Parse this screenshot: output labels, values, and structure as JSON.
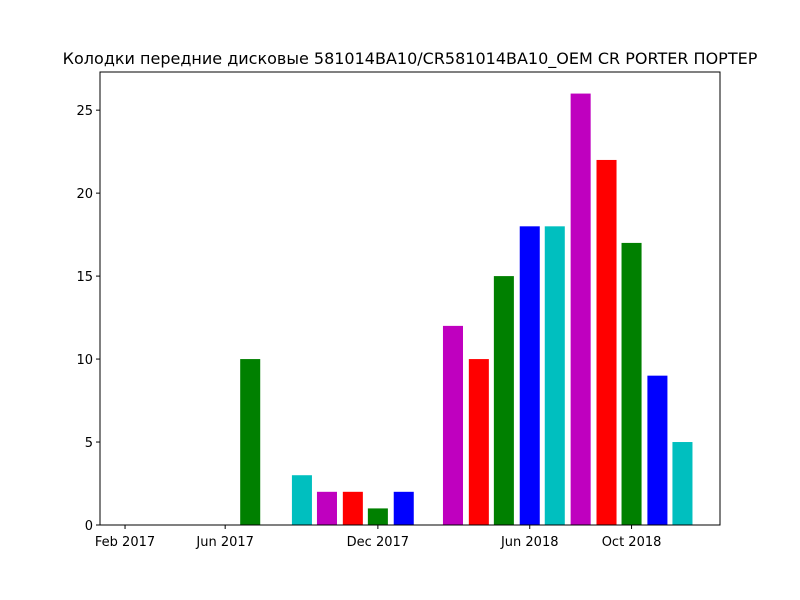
{
  "chart_data": {
    "type": "bar",
    "title": "Колодки передние дисковые 581014BA10/CR581014BA10_OEM CR PORTER ПОРТЕР",
    "xlabel": "",
    "ylabel": "",
    "x_type": "date",
    "xlim": [
      "2017-01-02",
      "2019-01-15"
    ],
    "ylim": [
      0,
      27.3
    ],
    "x_ticks": [
      {
        "date": "2017-02-01",
        "label": "Feb 2017"
      },
      {
        "date": "2017-06-01",
        "label": "Jun 2017"
      },
      {
        "date": "2017-12-01",
        "label": "Dec 2017"
      },
      {
        "date": "2018-06-01",
        "label": "Jun 2018"
      },
      {
        "date": "2018-10-01",
        "label": "Oct 2018"
      }
    ],
    "y_ticks": [
      0,
      5,
      10,
      15,
      20,
      25
    ],
    "bar_width_days": 24,
    "grid": false,
    "legend": "none",
    "bars": [
      {
        "date": "2017-07-01",
        "value": 10,
        "color": "#008000"
      },
      {
        "date": "2017-09-01",
        "value": 3,
        "color": "#00bfbf"
      },
      {
        "date": "2017-10-01",
        "value": 2,
        "color": "#bf00bf"
      },
      {
        "date": "2017-11-01",
        "value": 2,
        "color": "#ff0000"
      },
      {
        "date": "2017-12-01",
        "value": 1,
        "color": "#008000"
      },
      {
        "date": "2018-01-01",
        "value": 2,
        "color": "#0000ff"
      },
      {
        "date": "2018-03-01",
        "value": 12,
        "color": "#bf00bf"
      },
      {
        "date": "2018-04-01",
        "value": 10,
        "color": "#ff0000"
      },
      {
        "date": "2018-05-01",
        "value": 15,
        "color": "#008000"
      },
      {
        "date": "2018-06-01",
        "value": 18,
        "color": "#0000ff"
      },
      {
        "date": "2018-07-01",
        "value": 18,
        "color": "#00bfbf"
      },
      {
        "date": "2018-08-01",
        "value": 26,
        "color": "#bf00bf"
      },
      {
        "date": "2018-09-01",
        "value": 22,
        "color": "#ff0000"
      },
      {
        "date": "2018-10-01",
        "value": 17,
        "color": "#008000"
      },
      {
        "date": "2018-11-01",
        "value": 9,
        "color": "#0000ff"
      },
      {
        "date": "2018-12-01",
        "value": 5,
        "color": "#00bfbf"
      }
    ]
  }
}
